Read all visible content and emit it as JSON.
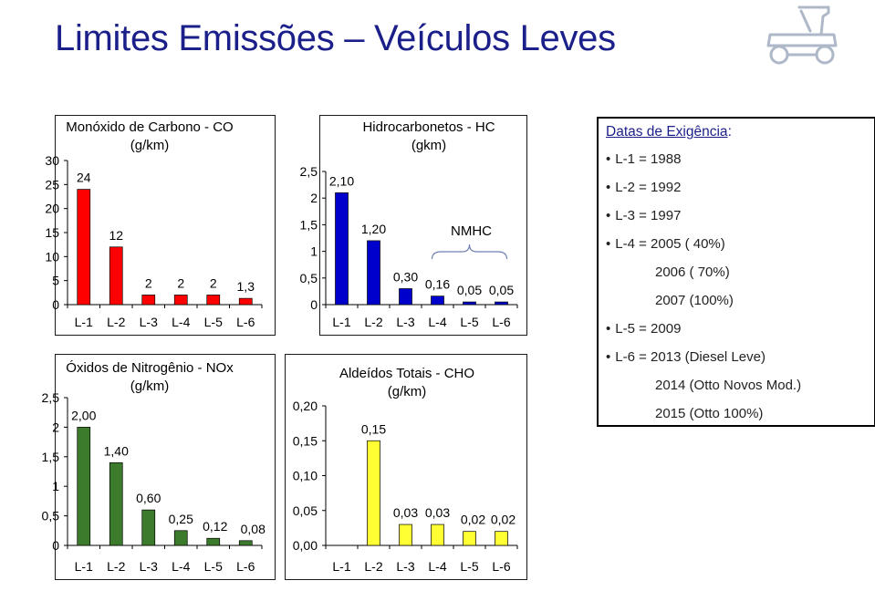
{
  "title": "Limites Emissões – Veículos Leves",
  "colors": {
    "title": "#1b1f8a",
    "co": "#ff0000",
    "hc": "#0000cc",
    "nox": "#3c7a2c",
    "cho": "#ffff33"
  },
  "chart_data": [
    {
      "id": "co",
      "type": "bar",
      "title": "Monóxido de Carbono - CO",
      "subtitle": "(g/km)",
      "categories": [
        "L-1",
        "L-2",
        "L-3",
        "L-4",
        "L-5",
        "L-6"
      ],
      "values": [
        24,
        12,
        2,
        2,
        2,
        1.3
      ],
      "data_labels": [
        "24",
        "12",
        "2",
        "2",
        "2",
        "1,3"
      ],
      "ylim": [
        0,
        30
      ],
      "yticks": [
        0,
        5,
        10,
        15,
        20,
        25,
        30
      ],
      "ytick_labels": [
        "0",
        "5",
        "10",
        "15",
        "20",
        "25",
        "30"
      ],
      "color": "#ff0000"
    },
    {
      "id": "hc",
      "type": "bar",
      "title": "Hidrocarbonetos - HC",
      "subtitle": "(gkm)",
      "categories": [
        "L-1",
        "L-2",
        "L-3",
        "L-4",
        "L-5",
        "L-6"
      ],
      "values": [
        2.1,
        1.2,
        0.3,
        0.16,
        0.05,
        0.05
      ],
      "data_labels": [
        "2,10",
        "1,20",
        "0,30",
        "0,16",
        "0,05",
        "0,05"
      ],
      "annotation": {
        "text": "NMHC",
        "bracket_from": 3,
        "bracket_to": 5
      },
      "ylim": [
        0,
        2.5
      ],
      "yticks": [
        0,
        0.5,
        1,
        1.5,
        2,
        2.5
      ],
      "ytick_labels": [
        "0",
        "0,5",
        "1",
        "1,5",
        "2",
        "2,5"
      ],
      "color": "#0000cc"
    },
    {
      "id": "nox",
      "type": "bar",
      "title": "Óxidos de Nitrogênio - NOx",
      "subtitle": "(g/km)",
      "categories": [
        "L-1",
        "L-2",
        "L-3",
        "L-4",
        "L-5",
        "L-6"
      ],
      "values": [
        2.0,
        1.4,
        0.6,
        0.25,
        0.12,
        0.08
      ],
      "data_labels": [
        "2,00",
        "1,40",
        "0,60",
        "0,25",
        "0,12",
        "0,08"
      ],
      "ylim": [
        0,
        2.5
      ],
      "yticks": [
        0,
        0.5,
        1,
        1.5,
        2,
        2.5
      ],
      "ytick_labels": [
        "0",
        "0,5",
        "1",
        "1,5",
        "2",
        "2,5"
      ],
      "color": "#3c7a2c"
    },
    {
      "id": "cho",
      "type": "bar",
      "title": "Aldeídos Totais - CHO",
      "subtitle": "(g/km)",
      "categories": [
        "L-1",
        "L-2",
        "L-3",
        "L-4",
        "L-5",
        "L-6"
      ],
      "values": [
        null,
        0.15,
        0.03,
        0.03,
        0.02,
        0.02
      ],
      "data_labels": [
        "",
        "0,15",
        "0,03",
        "0,03",
        "0,02",
        "0,02"
      ],
      "ylim": [
        0,
        0.2
      ],
      "yticks": [
        0,
        0.05,
        0.1,
        0.15,
        0.2
      ],
      "ytick_labels": [
        "0,00",
        "0,05",
        "0,10",
        "0,15",
        "0,20"
      ],
      "color": "#ffff33"
    }
  ],
  "dates": {
    "title_underlined": "Datas de Exigência",
    "title_suffix": ":",
    "lines": [
      {
        "text": "L-1 = 1988",
        "bullet": true
      },
      {
        "text": "L-2 = 1992",
        "bullet": true
      },
      {
        "text": "L-3 = 1997",
        "bullet": true
      },
      {
        "text": "L-4 = 2005 (  40%)",
        "bullet": true
      },
      {
        "text": "2006 (  70%)",
        "bullet": false
      },
      {
        "text": "2007 (100%)",
        "bullet": false
      },
      {
        "text": "L-5 = 2009",
        "bullet": true
      },
      {
        "text": "L-6 = 2013 (Diesel Leve)",
        "bullet": true
      },
      {
        "text": "2014 (Otto Novos Mod.)",
        "bullet": false
      },
      {
        "text": "2015 (Otto 100%)",
        "bullet": false
      }
    ]
  }
}
